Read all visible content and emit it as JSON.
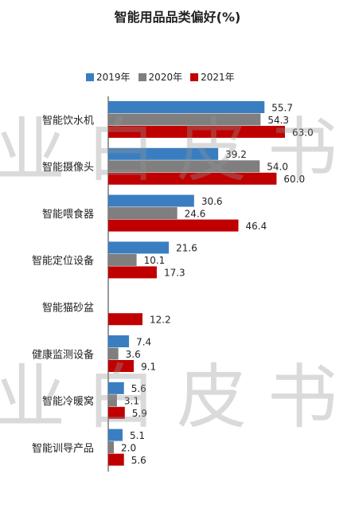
{
  "chart_data": {
    "type": "bar",
    "orientation": "horizontal",
    "title": "智能用品品类偏好(%)",
    "legend_position": "top",
    "categories": [
      "智能饮水机",
      "智能摄像头",
      "智能喂食器",
      "智能定位设备",
      "智能猫砂盆",
      "健康监测设备",
      "智能冷暖窝",
      "智能训导产品"
    ],
    "series": [
      {
        "name": "2019年",
        "color": "#3A7EC1",
        "values": [
          55.7,
          39.2,
          30.6,
          21.6,
          null,
          7.4,
          5.6,
          5.1
        ]
      },
      {
        "name": "2020年",
        "color": "#7F7F7F",
        "values": [
          54.3,
          54.0,
          24.6,
          10.1,
          null,
          3.6,
          3.1,
          2.0
        ]
      },
      {
        "name": "2021年",
        "color": "#C00000",
        "values": [
          63.0,
          60.0,
          46.4,
          17.3,
          12.2,
          9.1,
          5.9,
          5.6
        ]
      }
    ],
    "xlim": [
      0,
      63
    ],
    "grid": false
  },
  "watermark": {
    "text": "业白皮书"
  }
}
